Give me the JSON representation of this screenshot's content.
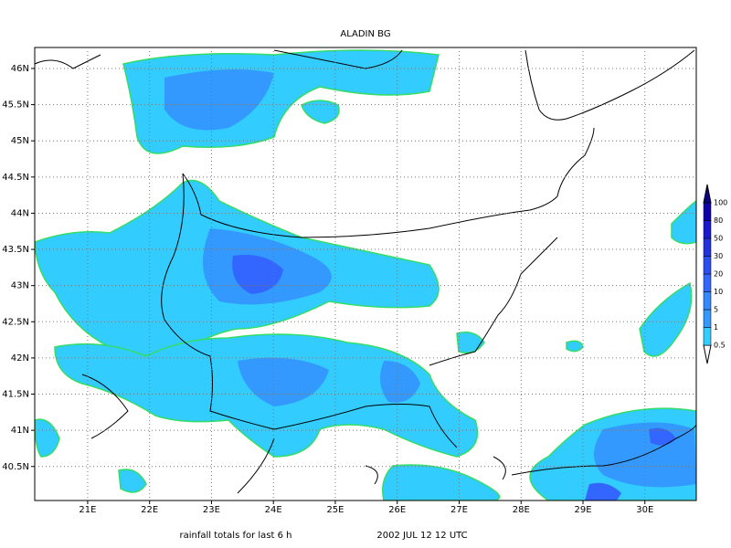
{
  "map": {
    "title": "ALADIN BG",
    "xlim": [
      20.145,
      30.83
    ],
    "ylim": [
      40.03,
      46.29
    ],
    "xticks": [
      {
        "value": 21,
        "label": "21E"
      },
      {
        "value": 22,
        "label": "22E"
      },
      {
        "value": 23,
        "label": "23E"
      },
      {
        "value": 24,
        "label": "24E"
      },
      {
        "value": 25,
        "label": "25E"
      },
      {
        "value": 26,
        "label": "26E"
      },
      {
        "value": 27,
        "label": "27E"
      },
      {
        "value": 28,
        "label": "28E"
      },
      {
        "value": 29,
        "label": "29E"
      },
      {
        "value": 30,
        "label": "30E"
      }
    ],
    "yticks": [
      {
        "value": 40.5,
        "label": "40.5N"
      },
      {
        "value": 41,
        "label": "41N"
      },
      {
        "value": 41.5,
        "label": "41.5N"
      },
      {
        "value": 42,
        "label": "42N"
      },
      {
        "value": 42.5,
        "label": "42.5N"
      },
      {
        "value": 43,
        "label": "43N"
      },
      {
        "value": 43.5,
        "label": "43.5N"
      },
      {
        "value": 44,
        "label": "44N"
      },
      {
        "value": 44.5,
        "label": "44.5N"
      },
      {
        "value": 45,
        "label": "45N"
      },
      {
        "value": 45.5,
        "label": "45.5N"
      },
      {
        "value": 46,
        "label": "46N"
      }
    ],
    "colorbar": {
      "levels": [
        0.5,
        1,
        5,
        10,
        20,
        30,
        50,
        80,
        100
      ],
      "colors": [
        "#33ccff",
        "#3399ff",
        "#3388ff",
        "#3366ff",
        "#2a4ff0",
        "#2233dd",
        "#1a1acc",
        "#1100aa",
        "#0b0088"
      ]
    },
    "footer_left": "rainfall totals for last 6 h",
    "footer_right": "2002 JUL 12 12 UTC"
  }
}
